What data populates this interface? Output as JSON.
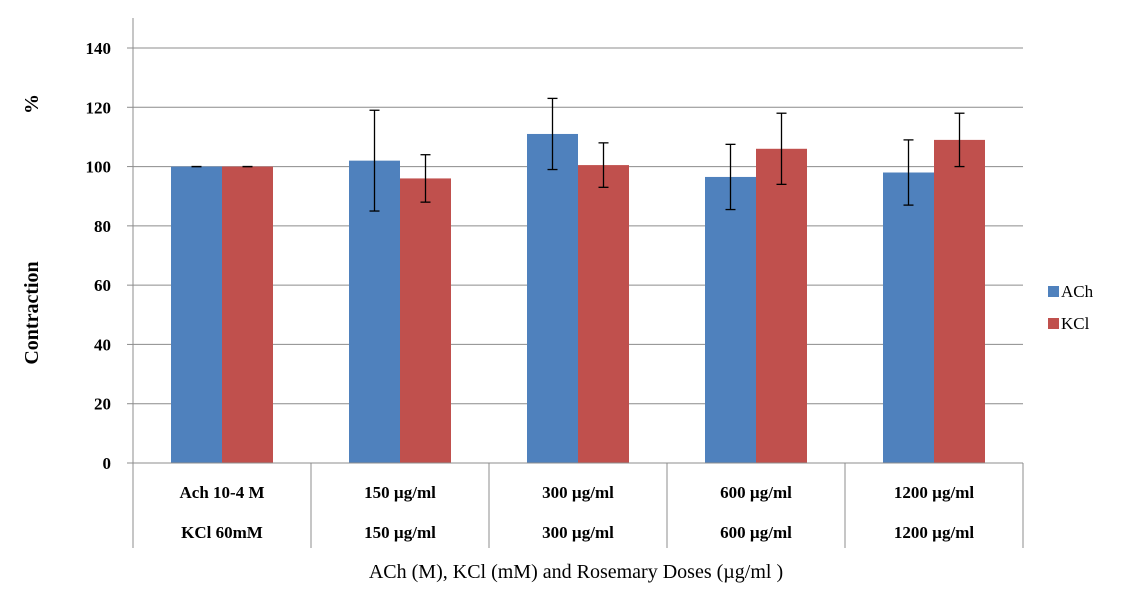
{
  "chart_data": {
    "type": "bar",
    "title": "",
    "ylabel_percent": "%",
    "ylabel": "Contraction",
    "xlabel": "ACh (M), KCl (mM) and Rosemary  Doses (µg/ml )",
    "ylim": [
      0,
      140
    ],
    "yticks": [
      0,
      20,
      40,
      60,
      80,
      100,
      120,
      140
    ],
    "grid": true,
    "legend_position": "right",
    "categories": [
      [
        "Ach 10-4 M",
        "KCl 60mM"
      ],
      [
        "150 µg/ml",
        "150 µg/ml"
      ],
      [
        "300 µg/ml",
        "300 µg/ml"
      ],
      [
        "600 µg/ml",
        "600 µg/ml"
      ],
      [
        "1200 µg/ml",
        "1200 µg/ml"
      ]
    ],
    "series": [
      {
        "name": "ACh",
        "color": "#4f81bd",
        "values": [
          100,
          102,
          111,
          96.5,
          98
        ],
        "errors": [
          0,
          17,
          12,
          11,
          11
        ]
      },
      {
        "name": "KCl",
        "color": "#c0504d",
        "values": [
          100,
          96,
          100.5,
          106,
          109
        ],
        "errors": [
          0,
          8,
          7.5,
          12,
          9
        ]
      }
    ]
  }
}
